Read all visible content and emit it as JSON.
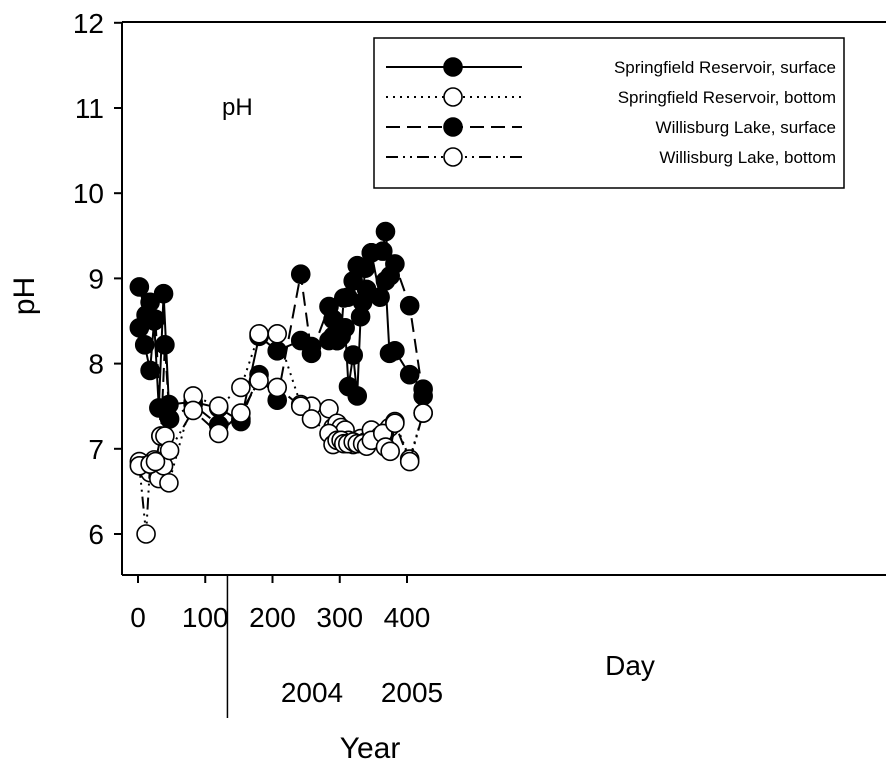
{
  "chart_data": {
    "type": "line",
    "title": "",
    "panel_label": "pH",
    "xlabel": "Day",
    "ylabel": "pH",
    "year_axis": {
      "title": "Year",
      "labels": [
        "2004",
        "2005"
      ],
      "boundary_day": 133
    },
    "xlim": [
      -10,
      445
    ],
    "ylim": [
      5.5,
      12
    ],
    "xticks": [
      0,
      100,
      200,
      300,
      400
    ],
    "yticks": [
      6,
      7,
      8,
      9,
      10,
      11,
      12
    ],
    "grid": false,
    "legend_position": "top-right",
    "series": [
      {
        "name": "Springfield Reservoir, surface",
        "line_style": "solid",
        "marker": "filled-circle",
        "x": [
          2,
          10,
          18,
          24,
          31,
          38,
          46,
          82,
          120,
          153,
          180,
          207,
          242,
          258,
          284,
          290,
          296,
          302,
          308,
          313,
          320,
          326,
          331,
          338,
          347,
          360,
          368,
          374,
          382,
          404,
          424
        ],
        "y": [
          8.42,
          8.22,
          7.92,
          8.5,
          7.48,
          8.82,
          7.52,
          7.55,
          7.48,
          7.32,
          8.32,
          8.15,
          8.27,
          8.2,
          8.27,
          8.52,
          8.27,
          8.32,
          8.42,
          7.73,
          8.1,
          7.62,
          8.55,
          9.12,
          9.3,
          8.78,
          8.97,
          8.12,
          8.15,
          7.87,
          7.7
        ]
      },
      {
        "name": "Springfield Reservoir, bottom",
        "line_style": "dotted",
        "marker": "open-circle",
        "x": [
          2,
          10,
          18,
          24,
          31,
          38,
          46,
          82,
          120,
          153,
          180,
          207,
          242,
          258,
          284,
          290,
          296,
          302,
          308,
          313,
          320,
          326,
          331,
          338,
          347,
          360,
          368,
          374,
          382,
          404,
          424
        ],
        "y": [
          6.85,
          6.8,
          6.72,
          6.87,
          6.65,
          6.8,
          6.6,
          7.62,
          7.5,
          7.72,
          8.35,
          8.35,
          7.52,
          7.5,
          7.47,
          7.25,
          7.3,
          7.25,
          7.22,
          7.1,
          7.05,
          7.08,
          7.12,
          7.08,
          7.22,
          7.15,
          7.2,
          7.25,
          7.32,
          6.88,
          7.42
        ]
      },
      {
        "name": "Willisburg Lake, surface",
        "line_style": "dashed",
        "marker": "filled-circle",
        "x": [
          2,
          12,
          18,
          26,
          34,
          40,
          47,
          82,
          120,
          153,
          180,
          207,
          242,
          258,
          284,
          290,
          296,
          302,
          306,
          312,
          320,
          326,
          334,
          340,
          347,
          364,
          368,
          375,
          382,
          404,
          424
        ],
        "y": [
          8.9,
          8.57,
          8.72,
          8.52,
          7.15,
          8.22,
          7.35,
          7.52,
          7.28,
          7.35,
          7.87,
          7.57,
          9.05,
          8.12,
          8.67,
          8.32,
          8.27,
          8.35,
          8.77,
          8.78,
          8.97,
          9.15,
          8.72,
          8.87,
          9.3,
          9.32,
          9.55,
          9.03,
          9.17,
          8.68,
          7.62
        ]
      },
      {
        "name": "Willisburg Lake, bottom",
        "line_style": "dash-dot-dot",
        "marker": "open-circle",
        "x": [
          2,
          12,
          18,
          26,
          34,
          40,
          47,
          82,
          120,
          153,
          180,
          207,
          242,
          258,
          284,
          290,
          296,
          302,
          306,
          312,
          320,
          326,
          334,
          340,
          347,
          364,
          368,
          375,
          382,
          404,
          424
        ],
        "y": [
          6.8,
          6.0,
          6.82,
          6.85,
          7.15,
          7.15,
          6.98,
          7.45,
          7.18,
          7.42,
          7.8,
          7.72,
          7.5,
          7.35,
          7.18,
          7.05,
          7.1,
          7.1,
          7.06,
          7.06,
          7.08,
          7.06,
          7.06,
          7.03,
          7.1,
          7.18,
          7.02,
          6.97,
          7.3,
          6.85,
          7.42
        ]
      }
    ]
  }
}
